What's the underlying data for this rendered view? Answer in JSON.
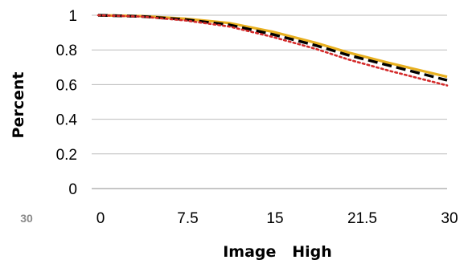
{
  "chart_data": {
    "type": "line",
    "title": "",
    "xlabel": "Image   High",
    "ylabel": "Percent",
    "x_tick_labels": [
      "0",
      "7.5",
      "15",
      "21.5",
      "30"
    ],
    "y_tick_labels": [
      "0",
      "0.2",
      "0.4",
      "0.6",
      "0.8",
      "1"
    ],
    "xlim": [
      0,
      30
    ],
    "ylim": [
      0,
      1
    ],
    "grid": "horizontal",
    "legend": "none",
    "extra_label": "30",
    "series": [
      {
        "color": "#e8b020",
        "style": "solid",
        "points": [
          [
            0,
            1.0
          ],
          [
            3.75,
            0.995
          ],
          [
            7.5,
            0.98
          ],
          [
            11.25,
            0.955
          ],
          [
            15,
            0.905
          ],
          [
            18.75,
            0.84
          ],
          [
            21.5,
            0.785
          ],
          [
            25,
            0.725
          ],
          [
            30,
            0.645
          ]
        ]
      },
      {
        "color": "#000000",
        "style": "dashed",
        "points": [
          [
            0,
            1.0
          ],
          [
            3.75,
            0.993
          ],
          [
            7.5,
            0.975
          ],
          [
            11.25,
            0.945
          ],
          [
            15,
            0.89
          ],
          [
            18.75,
            0.825
          ],
          [
            21.5,
            0.77
          ],
          [
            25,
            0.71
          ],
          [
            30,
            0.625
          ]
        ]
      },
      {
        "color": "#d42a2a",
        "style": "dotted",
        "points": [
          [
            0,
            1.0
          ],
          [
            3.75,
            0.992
          ],
          [
            7.5,
            0.97
          ],
          [
            11.25,
            0.935
          ],
          [
            15,
            0.875
          ],
          [
            18.75,
            0.805
          ],
          [
            21.5,
            0.745
          ],
          [
            25,
            0.68
          ],
          [
            30,
            0.595
          ]
        ]
      }
    ]
  }
}
